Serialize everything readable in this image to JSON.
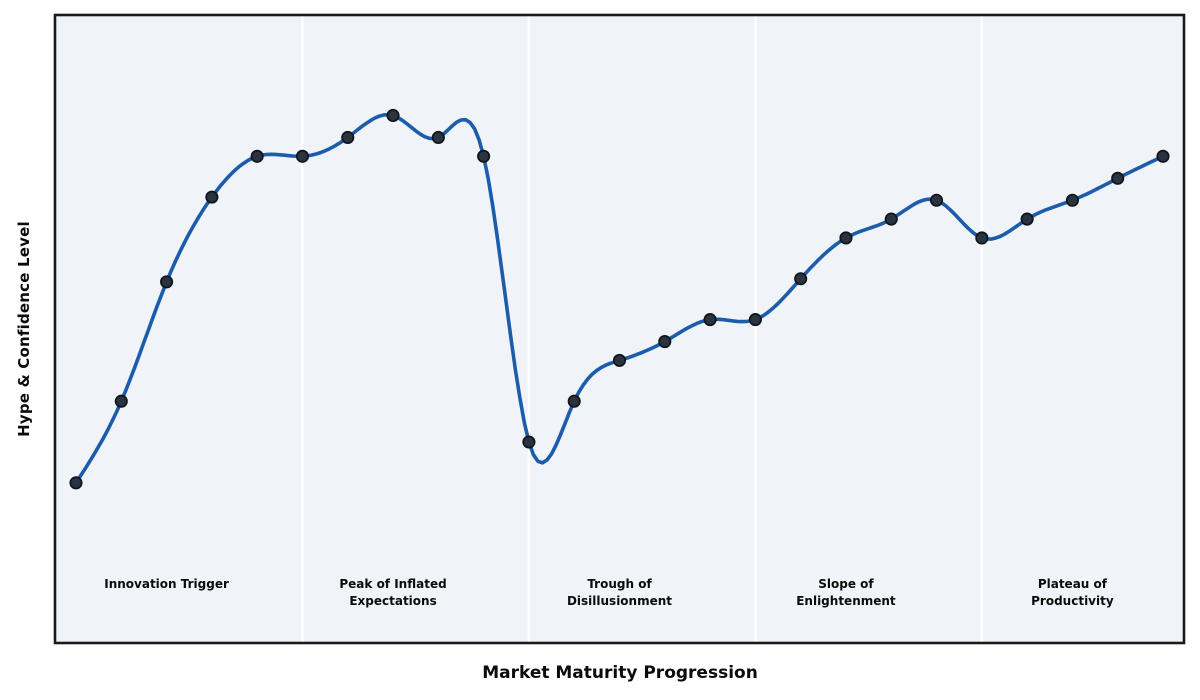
{
  "chart_data": {
    "type": "line",
    "title": "",
    "xlabel": "Market Maturity Progression",
    "ylabel": "Hype & Confidence Level",
    "x": [
      1,
      2,
      3,
      4,
      5,
      6,
      7,
      8,
      9,
      10,
      11,
      12,
      13,
      14,
      15,
      16,
      17,
      18,
      19,
      20,
      21,
      22,
      23,
      24,
      25
    ],
    "values": [
      25.5,
      38.5,
      57.5,
      71,
      77.5,
      77.5,
      80.5,
      84,
      80.5,
      77.5,
      32,
      38.5,
      45,
      48,
      51.5,
      51.5,
      58,
      64.5,
      67.5,
      70.5,
      64.5,
      67.5,
      70.5,
      74,
      77.5
    ],
    "xlim": [
      0.54,
      25.46
    ],
    "ylim": [
      0,
      100
    ],
    "grid": false,
    "legend": "none",
    "tick_labels": "none",
    "interpolation": "cubic-spline",
    "phases": [
      {
        "label": "Innovation Trigger",
        "anchor_x": 3
      },
      {
        "label": "Peak of Inflated\nExpectations",
        "anchor_x": 8
      },
      {
        "label": "Trough of\nDisillusionment",
        "anchor_x": 13
      },
      {
        "label": "Slope of\nEnlightenment",
        "anchor_x": 18
      },
      {
        "label": "Plateau of\nProductivity",
        "anchor_x": 23
      }
    ],
    "phase_dividers_at_x": [
      6,
      11,
      16,
      21
    ],
    "colors": {
      "line": "#1b5cab",
      "marker_fill": "#2a3440",
      "marker_edge": "#0f141a",
      "plot_background": "#f0f3f8",
      "divider": "#ffffff",
      "border": "#1b1b1b",
      "text": "#0b0b0b",
      "figure_background": "#ffffff"
    }
  }
}
